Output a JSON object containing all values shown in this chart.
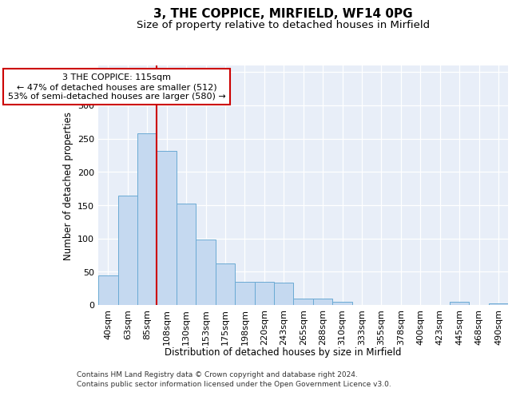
{
  "title": "3, THE COPPICE, MIRFIELD, WF14 0PG",
  "subtitle": "Size of property relative to detached houses in Mirfield",
  "xlabel": "Distribution of detached houses by size in Mirfield",
  "ylabel": "Number of detached properties",
  "categories": [
    "40sqm",
    "63sqm",
    "85sqm",
    "108sqm",
    "130sqm",
    "153sqm",
    "175sqm",
    "198sqm",
    "220sqm",
    "243sqm",
    "265sqm",
    "288sqm",
    "310sqm",
    "333sqm",
    "355sqm",
    "378sqm",
    "400sqm",
    "423sqm",
    "445sqm",
    "468sqm",
    "490sqm"
  ],
  "values": [
    44,
    165,
    258,
    232,
    152,
    98,
    62,
    35,
    35,
    34,
    10,
    10,
    5,
    0,
    0,
    0,
    0,
    0,
    5,
    0,
    2
  ],
  "bar_color": "#c5d9f0",
  "bar_edge_color": "#6aaad4",
  "vline_x": 2.5,
  "vline_color": "#cc0000",
  "annotation_line1": "3 THE COPPICE: 115sqm",
  "annotation_line2": "← 47% of detached houses are smaller (512)",
  "annotation_line3": "53% of semi-detached houses are larger (580) →",
  "annotation_box_facecolor": "#ffffff",
  "annotation_box_edgecolor": "#cc0000",
  "footer1": "Contains HM Land Registry data © Crown copyright and database right 2024.",
  "footer2": "Contains public sector information licensed under the Open Government Licence v3.0.",
  "bg_color": "#e8eef8",
  "ylim_max": 360,
  "yticks": [
    0,
    50,
    100,
    150,
    200,
    250,
    300,
    350
  ],
  "title_fontsize": 11,
  "subtitle_fontsize": 9.5,
  "axis_label_fontsize": 8.5,
  "tick_fontsize": 8,
  "footer_fontsize": 6.5
}
